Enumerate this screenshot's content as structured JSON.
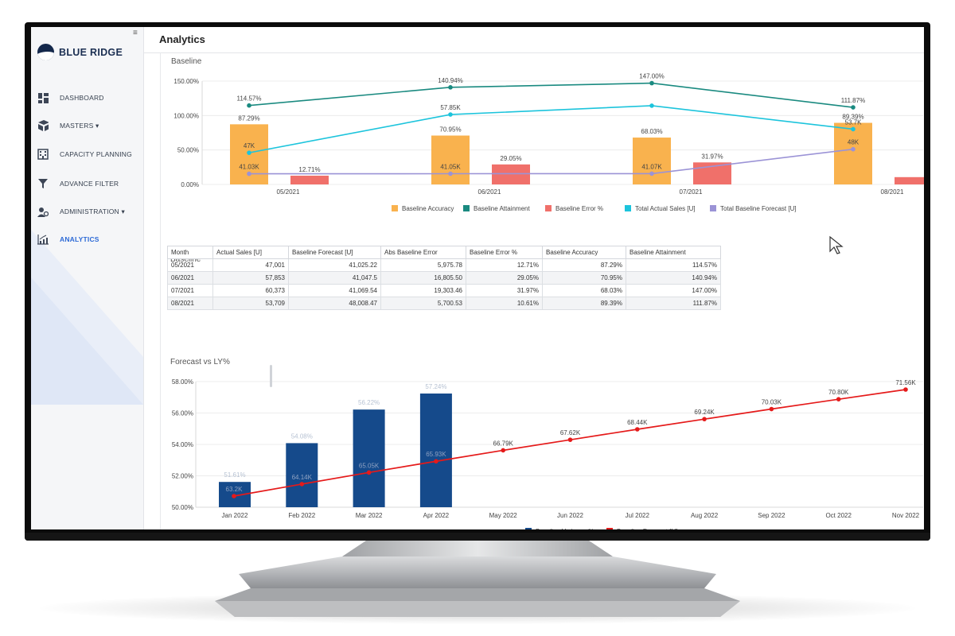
{
  "app": {
    "brand": "BLUE RIDGE",
    "page_title": "Analytics"
  },
  "sidebar": {
    "items": [
      {
        "label": "DASHBOARD",
        "icon": "dashboard-grid-icon"
      },
      {
        "label": "MASTERS ▾",
        "icon": "cubes-icon"
      },
      {
        "label": "CAPACITY PLANNING",
        "icon": "building-icon"
      },
      {
        "label": "ADVANCE FILTER",
        "icon": "funnel-icon"
      },
      {
        "label": "ADMINISTRATION ▾",
        "icon": "users-gear-icon"
      },
      {
        "label": "ANALYTICS",
        "icon": "chart-icon",
        "active": true
      }
    ]
  },
  "colors": {
    "accuracy": "#f9b24e",
    "attainment": "#1a8a80",
    "error": "#f0706a",
    "actual_sales": "#1cc4dc",
    "baseline_forecast": "#9b93d6",
    "variance": "#154a8b",
    "forecast_line": "#e51a1a",
    "active_nav": "#2d6ad6"
  },
  "sections": {
    "baseline_chart": "Baseline",
    "baseline_table": "Baseline",
    "forecast_chart": "Forecast vs LY%"
  },
  "chart_data": [
    {
      "type": "bar",
      "title": "Baseline",
      "categories": [
        "05/2021",
        "06/2021",
        "07/2021",
        "08/2021"
      ],
      "yaxis_ticks": [
        "150.00%",
        "100.00%",
        "50.00%",
        "0.00%"
      ],
      "ylim": [
        0,
        150
      ],
      "series": [
        {
          "name": "Baseline Accuracy",
          "kind": "bar",
          "values": [
            87.29,
            70.95,
            68.03,
            89.39
          ],
          "labels": [
            "87.29%",
            "70.95%",
            "68.03%",
            "89.39%"
          ]
        },
        {
          "name": "Baseline Attainment",
          "kind": "line",
          "values": [
            114.57,
            140.94,
            147.0,
            111.87
          ],
          "labels": [
            "114.57%",
            "140.94%",
            "147.00%",
            "111.87%"
          ]
        },
        {
          "name": "Baseline Error %",
          "kind": "bar",
          "values": [
            12.71,
            29.05,
            31.97,
            10.61
          ],
          "labels": [
            "12.71%",
            "29.05%",
            "31.97%",
            ""
          ]
        },
        {
          "name": "Total Actual Sales [U]",
          "kind": "line",
          "values": [
            47001,
            57853,
            60373,
            53709
          ],
          "labels": [
            "47K",
            "57.85K",
            "",
            "53.7K"
          ]
        },
        {
          "name": "Total Baseline Forecast [U]",
          "kind": "line",
          "values": [
            41025.22,
            41047.5,
            41069.54,
            48008.47
          ],
          "labels": [
            "41.03K",
            "41.05K",
            "41.07K",
            "48K"
          ]
        }
      ],
      "legend": "bottom"
    },
    {
      "type": "bar",
      "title": "Forecast vs LY%",
      "categories": [
        "Jan 2022",
        "Feb 2022",
        "Mar 2022",
        "Apr 2022",
        "May 2022",
        "Jun 2022",
        "Jul 2022",
        "Aug 2022",
        "Sep 2022",
        "Oct 2022",
        "Nov 2022"
      ],
      "yaxis_ticks": [
        "58.00%",
        "56.00%",
        "54.00%",
        "52.00%",
        "50.00%"
      ],
      "ylim": [
        50,
        58
      ],
      "series": [
        {
          "name": "Baseline Variance %",
          "kind": "bar",
          "values": [
            51.61,
            54.08,
            56.22,
            57.24,
            null,
            null,
            null,
            null,
            null,
            null,
            null
          ],
          "labels": [
            "51.61%",
            "54.08%",
            "56.22%",
            "57.24%"
          ]
        },
        {
          "name": "Baseline Forecast [U]",
          "kind": "line",
          "values": [
            63200,
            64140,
            65050,
            65930,
            66790,
            67620,
            68440,
            69240,
            70030,
            70800,
            71560
          ],
          "labels": [
            "63.2K",
            "64.14K",
            "65.05K",
            "65.93K",
            "66.79K",
            "67.62K",
            "68.44K",
            "69.24K",
            "70.03K",
            "70.80K",
            "71.56K"
          ]
        }
      ],
      "legend": "bottom"
    }
  ],
  "table": {
    "columns": [
      "Month",
      "Actual Sales [U]",
      "Baseline Forecast [U]",
      "Abs Baseline Error",
      "Baseline Error %",
      "Baseline Accuracy",
      "Baseline Attainment"
    ],
    "rows": [
      [
        "05/2021",
        "47,001",
        "41,025.22",
        "5,975.78",
        "12.71%",
        "87.29%",
        "114.57%"
      ],
      [
        "06/2021",
        "57,853",
        "41,047.5",
        "16,805.50",
        "29.05%",
        "70.95%",
        "140.94%"
      ],
      [
        "07/2021",
        "60,373",
        "41,069.54",
        "19,303.46",
        "31.97%",
        "68.03%",
        "147.00%"
      ],
      [
        "08/2021",
        "53,709",
        "48,008.47",
        "5,700.53",
        "10.61%",
        "89.39%",
        "111.87%"
      ]
    ]
  }
}
